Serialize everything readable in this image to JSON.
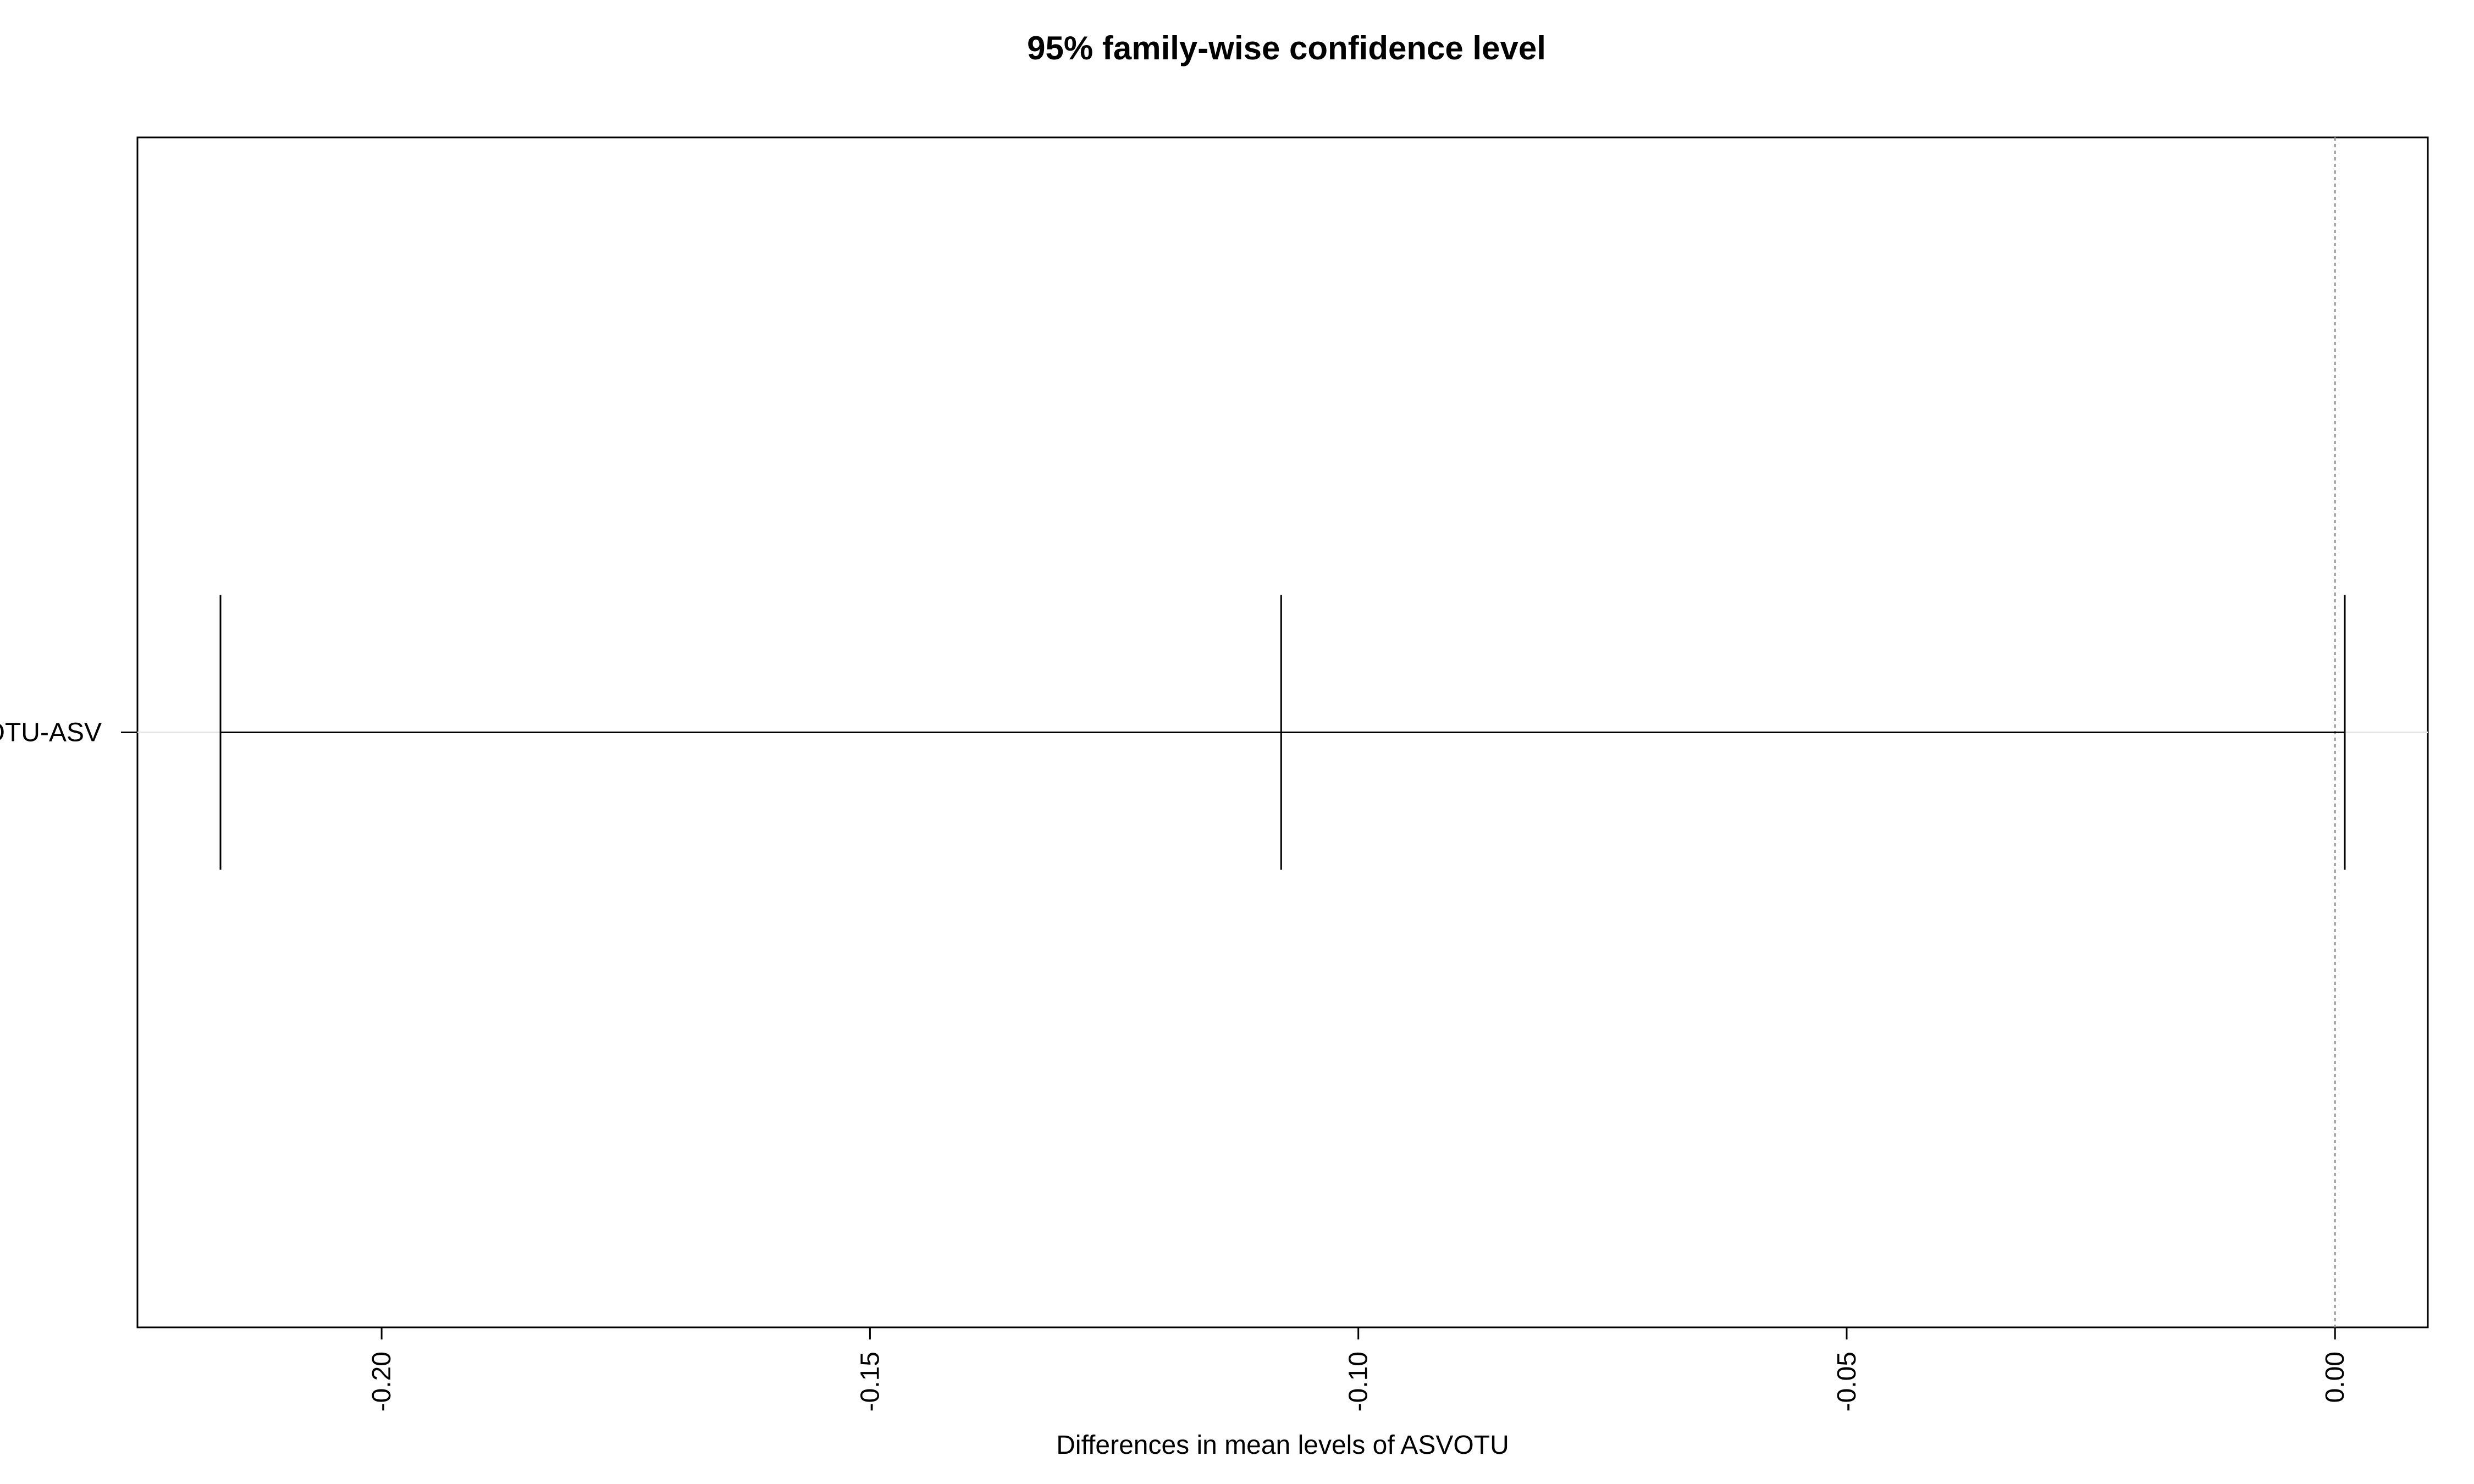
{
  "chart_data": {
    "type": "interval",
    "title": "95% family-wise confidence level",
    "xlabel": "Differences in mean levels of ASVOTU",
    "ylabel": "",
    "xlim": [
      -0.225,
      0.0095
    ],
    "x_ticks": [
      -0.2,
      -0.15,
      -0.1,
      -0.05,
      0.0
    ],
    "x_tick_labels": [
      "-0.20",
      "-0.15",
      "-0.10",
      "-0.05",
      "0.00"
    ],
    "reference_line": 0,
    "intervals": [
      {
        "label": "OTU-ASV",
        "lower": -0.2165,
        "estimate": -0.1079,
        "upper": 0.001
      }
    ]
  }
}
